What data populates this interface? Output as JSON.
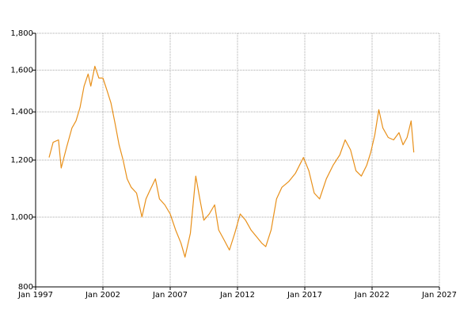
{
  "chart_data": {
    "type": "line",
    "log_y": true,
    "grid": true,
    "x": [
      1998.0,
      1998.3,
      1998.7,
      1998.9,
      1999.3,
      1999.7,
      2000.0,
      2000.3,
      2000.6,
      2000.9,
      2001.1,
      2001.4,
      2001.7,
      2002.0,
      2002.3,
      2002.6,
      2002.9,
      2003.2,
      2003.5,
      2003.8,
      2004.1,
      2004.5,
      2004.9,
      2005.2,
      2005.5,
      2005.9,
      2006.2,
      2006.6,
      2007.0,
      2007.4,
      2007.8,
      2008.1,
      2008.5,
      2008.9,
      2009.2,
      2009.5,
      2009.9,
      2010.3,
      2010.6,
      2011.0,
      2011.4,
      2011.8,
      2012.2,
      2012.6,
      2013.0,
      2013.4,
      2013.8,
      2014.1,
      2014.5,
      2014.9,
      2015.3,
      2015.8,
      2016.3,
      2016.9,
      2017.3,
      2017.7,
      2018.1,
      2018.6,
      2019.1,
      2019.6,
      2020.0,
      2020.4,
      2020.8,
      2021.2,
      2021.6,
      2021.9,
      2022.2,
      2022.5,
      2022.8,
      2023.2,
      2023.6,
      2024.0,
      2024.3,
      2024.6,
      2024.9,
      2025.1
    ],
    "series": [
      {
        "color": "#e8901a",
        "values": [
          1210,
          1270,
          1280,
          1170,
          1250,
          1330,
          1360,
          1420,
          1520,
          1580,
          1520,
          1620,
          1560,
          1560,
          1500,
          1440,
          1350,
          1260,
          1200,
          1130,
          1100,
          1080,
          1000,
          1060,
          1090,
          1130,
          1060,
          1040,
          1010,
          960,
          920,
          880,
          950,
          1140,
          1060,
          990,
          1010,
          1040,
          960,
          930,
          900,
          950,
          1010,
          990,
          960,
          940,
          920,
          910,
          960,
          1060,
          1100,
          1120,
          1150,
          1210,
          1160,
          1080,
          1060,
          1130,
          1180,
          1220,
          1280,
          1240,
          1160,
          1140,
          1180,
          1230,
          1300,
          1410,
          1330,
          1290,
          1280,
          1310,
          1260,
          1290,
          1360,
          1230
        ]
      }
    ],
    "xlim": [
      1997,
      2027
    ],
    "xticks": [
      {
        "value": 1997,
        "label": "Jan 1997"
      },
      {
        "value": 2002,
        "label": "Jan 2002"
      },
      {
        "value": 2007,
        "label": "Jan 2007"
      },
      {
        "value": 2012,
        "label": "Jan 2012"
      },
      {
        "value": 2017,
        "label": "Jan 2017"
      },
      {
        "value": 2022,
        "label": "Jan 2022"
      },
      {
        "value": 2027,
        "label": "Jan 2027"
      }
    ],
    "ylim": [
      800,
      1800
    ],
    "yticks": [
      800,
      {
        "value": 1000,
        "label": "1,000"
      },
      {
        "value": 1200,
        "label": "1,200"
      },
      {
        "value": 1400,
        "label": "1,400"
      },
      {
        "value": 1600,
        "label": "1,600"
      },
      {
        "value": 1800,
        "label": "1,800"
      }
    ]
  }
}
